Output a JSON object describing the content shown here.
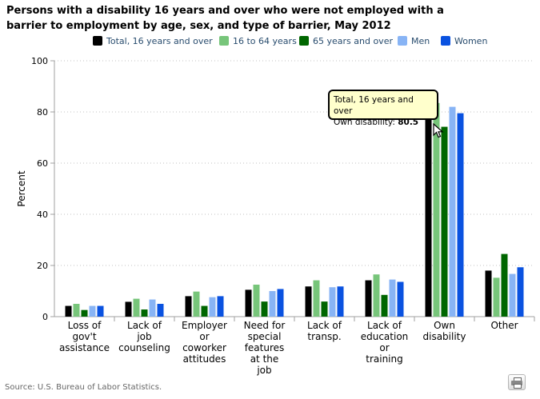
{
  "chart_data": {
    "type": "bar",
    "title": "Persons with a disability 16 years and over who were not employed with a barrier to employment by age, sex, and type of barrier, May 2012",
    "xlabel": "",
    "ylabel": "Percent",
    "ylim": [
      0,
      100
    ],
    "yticks": [
      0,
      20,
      40,
      60,
      80,
      100
    ],
    "grid": true,
    "legend_position": "top",
    "categories": [
      [
        "Loss of",
        "gov't",
        "assistance"
      ],
      [
        "Lack of",
        "job",
        "counseling"
      ],
      [
        "Employer",
        "or",
        "coworker",
        "attitudes"
      ],
      [
        "Need for",
        "special",
        "features",
        "at the",
        "job"
      ],
      [
        "Lack of",
        "transp."
      ],
      [
        "Lack of",
        "education",
        "or",
        "training"
      ],
      [
        "Own",
        "disability"
      ],
      [
        "Other"
      ]
    ],
    "series": [
      {
        "name": "Total, 16 years and over",
        "color": "#000000",
        "values": [
          4.2,
          5.8,
          8.0,
          10.5,
          11.8,
          14.2,
          80.5,
          18.0
        ]
      },
      {
        "name": "16 to 64 years",
        "color": "#77c57a",
        "values": [
          5.0,
          7.0,
          9.8,
          12.5,
          14.2,
          16.5,
          83.5,
          15.2
        ]
      },
      {
        "name": "65 years and over",
        "color": "#006600",
        "values": [
          2.6,
          2.8,
          4.2,
          5.9,
          5.9,
          8.5,
          74.2,
          24.5
        ]
      },
      {
        "name": "Men",
        "color": "#88b4f5",
        "values": [
          4.2,
          6.7,
          7.6,
          10.0,
          11.5,
          14.5,
          82.0,
          16.7
        ]
      },
      {
        "name": "Women",
        "color": "#0a52e0",
        "values": [
          4.2,
          5.0,
          8.0,
          10.8,
          11.8,
          13.6,
          79.5,
          19.3
        ]
      }
    ]
  },
  "tooltip": {
    "series_label": "Total, 16 years and over",
    "category_label": "Own disability:",
    "value": "80.5"
  },
  "source": "Source: U.S. Bureau of Labor Statistics.",
  "print_icon": "printer-icon"
}
